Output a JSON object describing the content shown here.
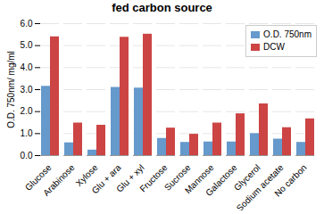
{
  "chart_data": {
    "type": "bar",
    "title": "fed carbon source",
    "ylabel": "O.D. 750nm/ mg/ml",
    "categories": [
      "Glucose",
      "Arabinose",
      "Xylose",
      "Glu + ara",
      "Glu + xyl",
      "Fructose",
      "Sucrose",
      "Mannose",
      "Galactose",
      "Glycerol",
      "Sodium acetate",
      "No carbon"
    ],
    "series": [
      {
        "name": "O.D. 750nm",
        "color": "#6699CC",
        "values": [
          3.15,
          0.58,
          0.25,
          3.1,
          3.07,
          0.78,
          0.6,
          0.62,
          0.62,
          1.0,
          0.75,
          0.6
        ]
      },
      {
        "name": "DCW",
        "color": "#CC4444",
        "values": [
          5.4,
          1.48,
          1.38,
          5.38,
          5.52,
          1.25,
          0.97,
          1.48,
          1.9,
          2.35,
          1.27,
          1.67
        ]
      }
    ],
    "ylim": [
      0,
      6
    ],
    "yticks": [
      0,
      1,
      2,
      3,
      4,
      5,
      6
    ],
    "grid": true,
    "legend": "upper right"
  }
}
